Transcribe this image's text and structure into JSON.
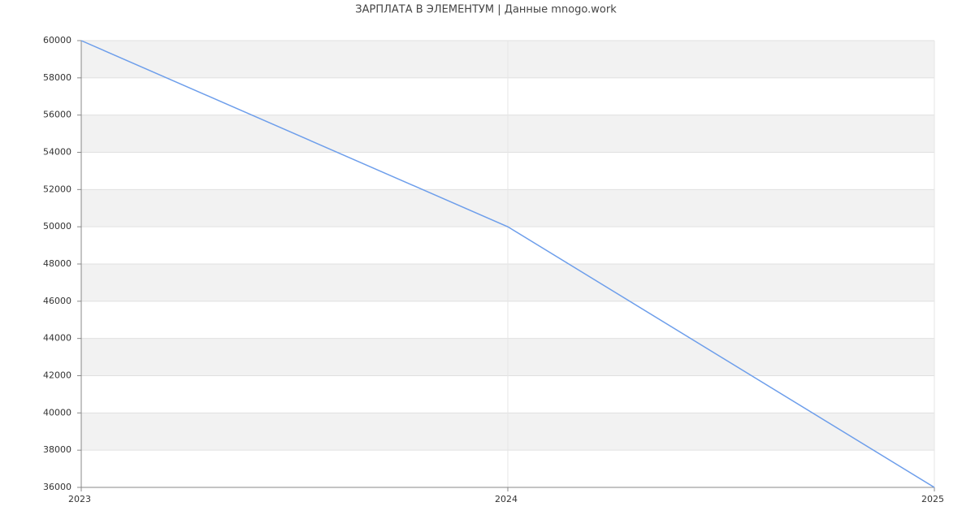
{
  "chart_data": {
    "type": "line",
    "title": "ЗАРПЛАТА В ЭЛЕМЕНТУМ | Данные mnogo.work",
    "x": [
      2023,
      2024,
      2025
    ],
    "xlim": [
      2023,
      2025
    ],
    "xticks": [
      2023,
      2024,
      2025
    ],
    "series": [
      {
        "name": null,
        "color": "#6d9eeb",
        "values": [
          60000,
          50000,
          36000
        ]
      }
    ],
    "ylim": [
      36000,
      60000
    ],
    "yticks": [
      36000,
      38000,
      40000,
      42000,
      44000,
      46000,
      48000,
      50000,
      52000,
      54000,
      56000,
      58000,
      60000
    ],
    "grid": true
  }
}
